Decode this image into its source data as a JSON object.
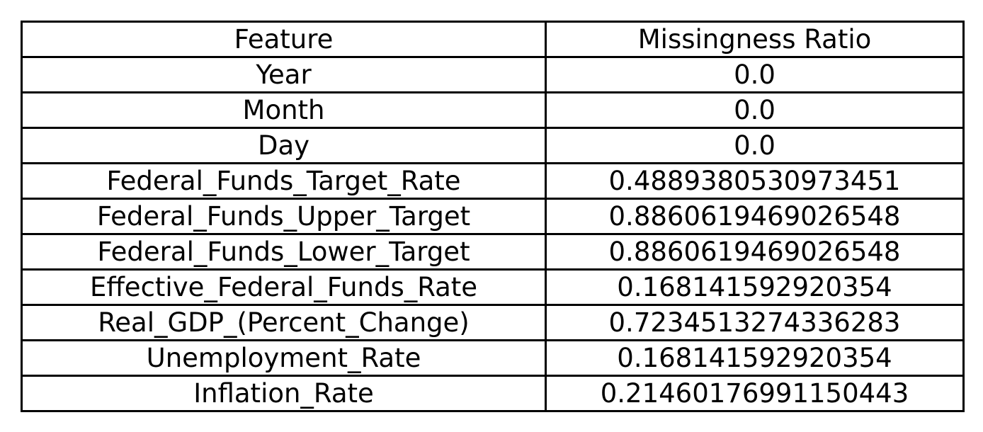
{
  "chart_data": {
    "type": "table",
    "columns": [
      "Feature",
      "Missingness Ratio"
    ],
    "rows": [
      [
        "Year",
        "0.0"
      ],
      [
        "Month",
        "0.0"
      ],
      [
        "Day",
        "0.0"
      ],
      [
        "Federal_Funds_Target_Rate",
        "0.4889380530973451"
      ],
      [
        "Federal_Funds_Upper_Target",
        "0.8860619469026548"
      ],
      [
        "Federal_Funds_Lower_Target",
        "0.8860619469026548"
      ],
      [
        "Effective_Federal_Funds_Rate",
        "0.168141592920354"
      ],
      [
        "Real_GDP_(Percent_Change)",
        "0.7234513274336283"
      ],
      [
        "Unemployment_Rate",
        "0.168141592920354"
      ],
      [
        "Inflation_Rate",
        "0.21460176991150443"
      ]
    ]
  }
}
